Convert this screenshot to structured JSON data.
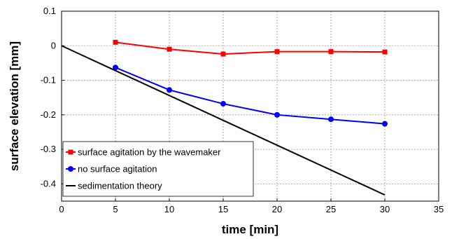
{
  "chart_data": {
    "type": "line",
    "xlabel": "time [min]",
    "ylabel": "surface elevation [mm]",
    "xlim": [
      0,
      35
    ],
    "ylim": [
      -0.45,
      0.1
    ],
    "xticks": [
      0,
      5,
      10,
      15,
      20,
      25,
      30,
      35
    ],
    "yticks": [
      0.1,
      0,
      -0.1,
      -0.2,
      -0.3,
      -0.4
    ],
    "ytick_labels": [
      "0.1",
      "0",
      "-0.1",
      "-0.2",
      "-0.3",
      "-0.4"
    ],
    "grid": true,
    "legend_position": "bottom-left",
    "series": [
      {
        "name": "surface agitation by the wavemaker",
        "color": "#ff0000",
        "marker": "square",
        "x": [
          5,
          10,
          15,
          20,
          25,
          30
        ],
        "y": [
          0.01,
          -0.01,
          -0.024,
          -0.017,
          -0.017,
          -0.018
        ]
      },
      {
        "name": "no surface agitation",
        "color": "#0000ff",
        "marker": "circle",
        "x": [
          5,
          10,
          15,
          20,
          25,
          30
        ],
        "y": [
          -0.063,
          -0.128,
          -0.168,
          -0.2,
          -0.213,
          -0.226
        ]
      },
      {
        "name": "sedimentation theory",
        "color": "#000000",
        "marker": "none",
        "x": [
          0,
          30
        ],
        "y": [
          0,
          -0.432
        ]
      }
    ]
  }
}
